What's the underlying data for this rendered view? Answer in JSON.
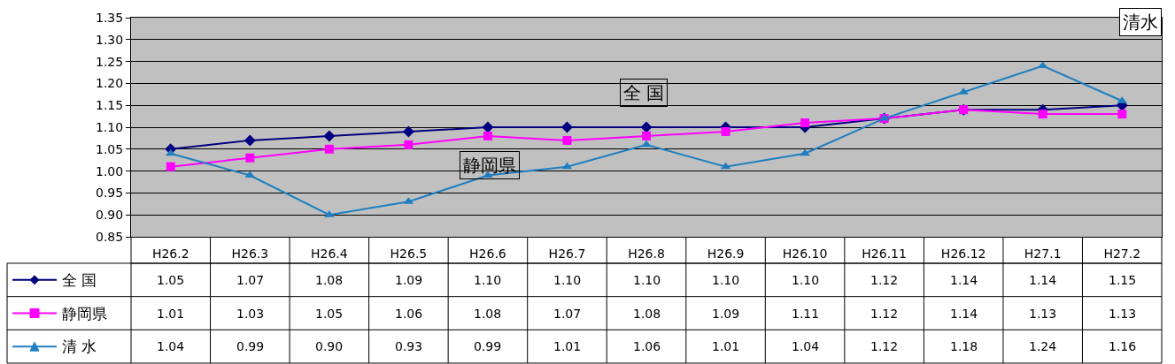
{
  "chart_data": {
    "type": "line",
    "title": "清水",
    "categories": [
      "H26.2",
      "H26.3",
      "H26.4",
      "H26.5",
      "H26.6",
      "H26.7",
      "H26.8",
      "H26.9",
      "H26.10",
      "H26.11",
      "H26.12",
      "H27.1",
      "H27.2"
    ],
    "series": [
      {
        "name": "全 国",
        "color": "#000080",
        "marker": "diamond",
        "values": [
          1.05,
          1.07,
          1.08,
          1.09,
          1.1,
          1.1,
          1.1,
          1.1,
          1.1,
          1.12,
          1.14,
          1.14,
          1.15
        ],
        "value_labels": [
          "1.05",
          "1.07",
          "1.08",
          "1.09",
          "1.10",
          "1.10",
          "1.10",
          "1.10",
          "1.10",
          "1.12",
          "1.14",
          "1.14",
          "1.15"
        ]
      },
      {
        "name": "静岡県",
        "color": "#ff00ff",
        "marker": "square",
        "values": [
          1.01,
          1.03,
          1.05,
          1.06,
          1.08,
          1.07,
          1.08,
          1.09,
          1.11,
          1.12,
          1.14,
          1.13,
          1.13
        ],
        "value_labels": [
          "1.01",
          "1.03",
          "1.05",
          "1.06",
          "1.08",
          "1.07",
          "1.08",
          "1.09",
          "1.11",
          "1.12",
          "1.14",
          "1.13",
          "1.13"
        ]
      },
      {
        "name": "清 水",
        "color": "#1f7fc0",
        "marker": "triangle",
        "values": [
          1.04,
          0.99,
          0.9,
          0.93,
          0.99,
          1.01,
          1.06,
          1.01,
          1.04,
          1.12,
          1.18,
          1.24,
          1.16
        ],
        "value_labels": [
          "1.04",
          "0.99",
          "0.90",
          "0.93",
          "0.99",
          "1.01",
          "1.06",
          "1.01",
          "1.04",
          "1.12",
          "1.18",
          "1.24",
          "1.16"
        ]
      }
    ],
    "annotations": [
      "全 国",
      "静岡県"
    ],
    "ylim": [
      0.85,
      1.35
    ],
    "yticks": [
      {
        "value": 0.85,
        "label": "0.85"
      },
      {
        "value": 0.9,
        "label": "0.90"
      },
      {
        "value": 0.95,
        "label": "0.95"
      },
      {
        "value": 1.0,
        "label": "1.00"
      },
      {
        "value": 1.05,
        "label": "1.05"
      },
      {
        "value": 1.1,
        "label": "1.10"
      },
      {
        "value": 1.15,
        "label": "1.15"
      },
      {
        "value": 1.2,
        "label": "1.20"
      },
      {
        "value": 1.25,
        "label": "1.25"
      },
      {
        "value": 1.3,
        "label": "1.30"
      },
      {
        "value": 1.35,
        "label": "1.35"
      }
    ],
    "grid": "y",
    "line_style": "solid",
    "legend": "bottom left"
  }
}
